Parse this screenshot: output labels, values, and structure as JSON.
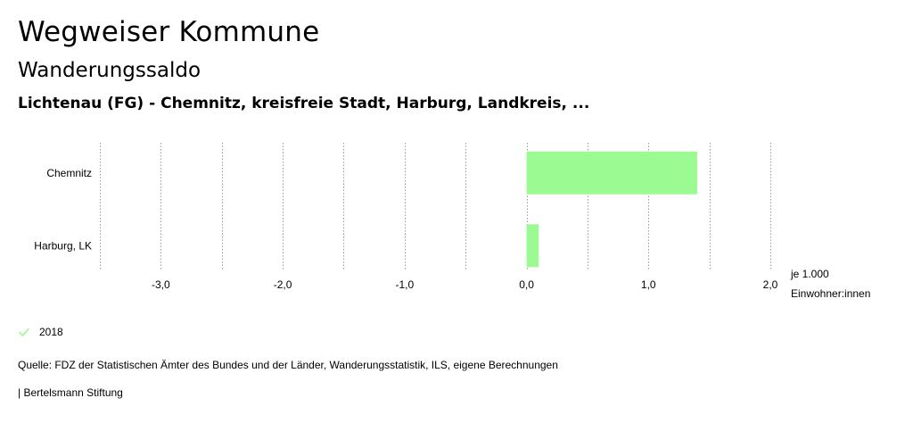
{
  "header": {
    "title": "Wegweiser Kommune",
    "subtitle": "Wanderungssaldo",
    "region_line": "Lichtenau (FG) - Chemnitz, kreisfreie Stadt, Harburg, Landkreis, ..."
  },
  "chart_data": {
    "type": "bar",
    "orientation": "horizontal",
    "categories": [
      "Chemnitz",
      "Harburg, LK"
    ],
    "series": [
      {
        "name": "2018",
        "values": [
          1.4,
          0.1
        ]
      }
    ],
    "xlim": [
      -3.5,
      2.0
    ],
    "x_ticks": [
      -3.0,
      -2.0,
      -1.0,
      0.0,
      1.0,
      2.0
    ],
    "x_tick_labels": [
      "-3,0",
      "-2,0",
      "-1,0",
      "0,0",
      "1,0",
      "2,0"
    ],
    "unit_label_line1": "je 1.000",
    "unit_label_line2": "Einwohner:innen",
    "grid": true,
    "bar_color": "#9cfa93"
  },
  "legend": {
    "items": [
      {
        "label": "2018",
        "color": "#9cfa93"
      }
    ]
  },
  "footer": {
    "source": "Quelle: FDZ der Statistischen Ämter des Bundes und der Länder, Wanderungsstatistik, ILS, eigene Berechnungen",
    "credit": "| Bertelsmann Stiftung"
  }
}
